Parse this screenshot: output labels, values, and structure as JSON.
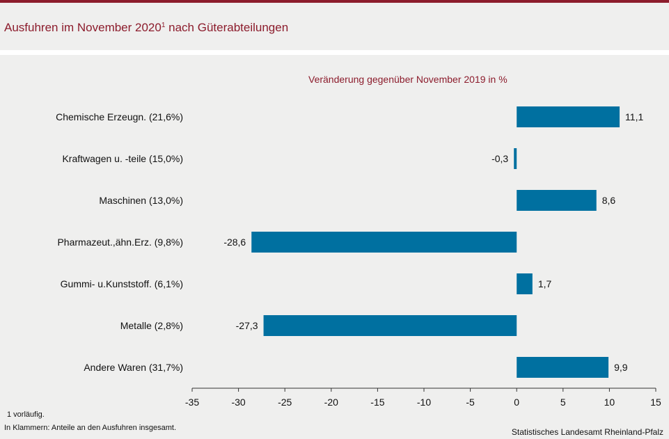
{
  "header": {
    "title": "Ausfuhren im November 2020",
    "title_footnote_mark": "1",
    "title_suffix": " nach Güterabteilungen"
  },
  "colors": {
    "accent": "#8c1c2c",
    "bar": "#0070a0",
    "background": "#efefee"
  },
  "chart_data": {
    "type": "bar",
    "orientation": "horizontal",
    "title": "Veränderung gegenüber November 2019 in %",
    "categories": [
      "Chemische Erzeugn. (21,6%)",
      "Kraftwagen u. -teile (15,0%)",
      "Maschinen (13,0%)",
      "Pharmazeut.,ähn.Erz. (9,8%)",
      "Gummi- u.Kunststoff. (6,1%)",
      "Metalle (2,8%)",
      "Andere Waren (31,7%)"
    ],
    "values": [
      11.1,
      -0.3,
      8.6,
      -28.6,
      1.7,
      -27.3,
      9.9
    ],
    "value_labels": [
      "11,1",
      "-0,3",
      "8,6",
      "-28,6",
      "1,7",
      "-27,3",
      "9,9"
    ],
    "xlim": [
      -35,
      15
    ],
    "xticks": [
      -35,
      -30,
      -25,
      -20,
      -15,
      -10,
      -5,
      0,
      5,
      10,
      15
    ],
    "grid": false,
    "legend": "none"
  },
  "footnotes": {
    "note_1": "1 vorläufig.",
    "note_2": "In Klammern: Anteile an den Ausfuhren insgesamt."
  },
  "source": "Statistisches Landesamt Rheinland-Pfalz"
}
